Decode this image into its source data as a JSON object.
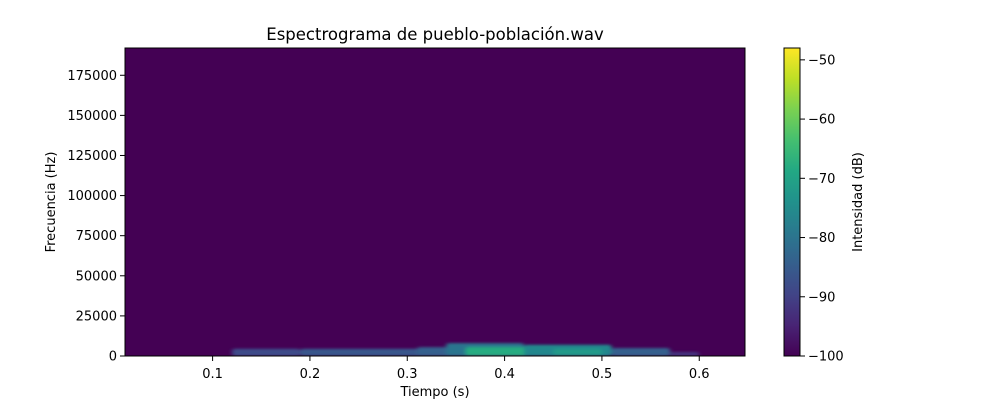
{
  "chart_data": {
    "type": "heatmap",
    "title": "Espectrograma de pueblo-población.wav",
    "xlabel": "Tiempo (s)",
    "ylabel": "Frecuencia (Hz)",
    "xlim": [
      0.01,
      0.647
    ],
    "ylim": [
      0,
      192000
    ],
    "x_ticks": [
      0.1,
      0.2,
      0.3,
      0.4,
      0.5,
      0.6
    ],
    "x_tick_labels": [
      "0.1",
      "0.2",
      "0.3",
      "0.4",
      "0.5",
      "0.6"
    ],
    "y_ticks": [
      0,
      25000,
      50000,
      75000,
      100000,
      125000,
      150000,
      175000
    ],
    "y_tick_labels": [
      "0",
      "25000",
      "50000",
      "75000",
      "100000",
      "125000",
      "150000",
      "175000"
    ],
    "colorbar": {
      "label": "Intensidad (dB)",
      "range": [
        -100,
        -48
      ],
      "ticks": [
        -100,
        -90,
        -80,
        -70,
        -60,
        -50
      ],
      "tick_labels": [
        "−100",
        "−90",
        "−80",
        "−70",
        "−60",
        "−50"
      ],
      "colormap": "viridis"
    },
    "background_db": -100,
    "energy_regions": [
      {
        "t_start": 0.12,
        "t_end": 0.19,
        "f_low": 0,
        "f_high": 4500,
        "db": -88
      },
      {
        "t_start": 0.19,
        "t_end": 0.33,
        "f_low": 0,
        "f_high": 4500,
        "db": -86
      },
      {
        "t_start": 0.31,
        "t_end": 0.35,
        "f_low": 0,
        "f_high": 5500,
        "db": -84
      },
      {
        "t_start": 0.34,
        "t_end": 0.42,
        "f_low": 0,
        "f_high": 8000,
        "db": -80
      },
      {
        "t_start": 0.36,
        "t_end": 0.45,
        "f_low": 0,
        "f_high": 5500,
        "db": -68
      },
      {
        "t_start": 0.42,
        "t_end": 0.51,
        "f_low": 0,
        "f_high": 7000,
        "db": -76
      },
      {
        "t_start": 0.45,
        "t_end": 0.5,
        "f_low": 0,
        "f_high": 4500,
        "db": -72
      },
      {
        "t_start": 0.51,
        "t_end": 0.57,
        "f_low": 0,
        "f_high": 5000,
        "db": -84
      },
      {
        "t_start": 0.57,
        "t_end": 0.6,
        "f_low": 0,
        "f_high": 2500,
        "db": -92
      }
    ]
  }
}
